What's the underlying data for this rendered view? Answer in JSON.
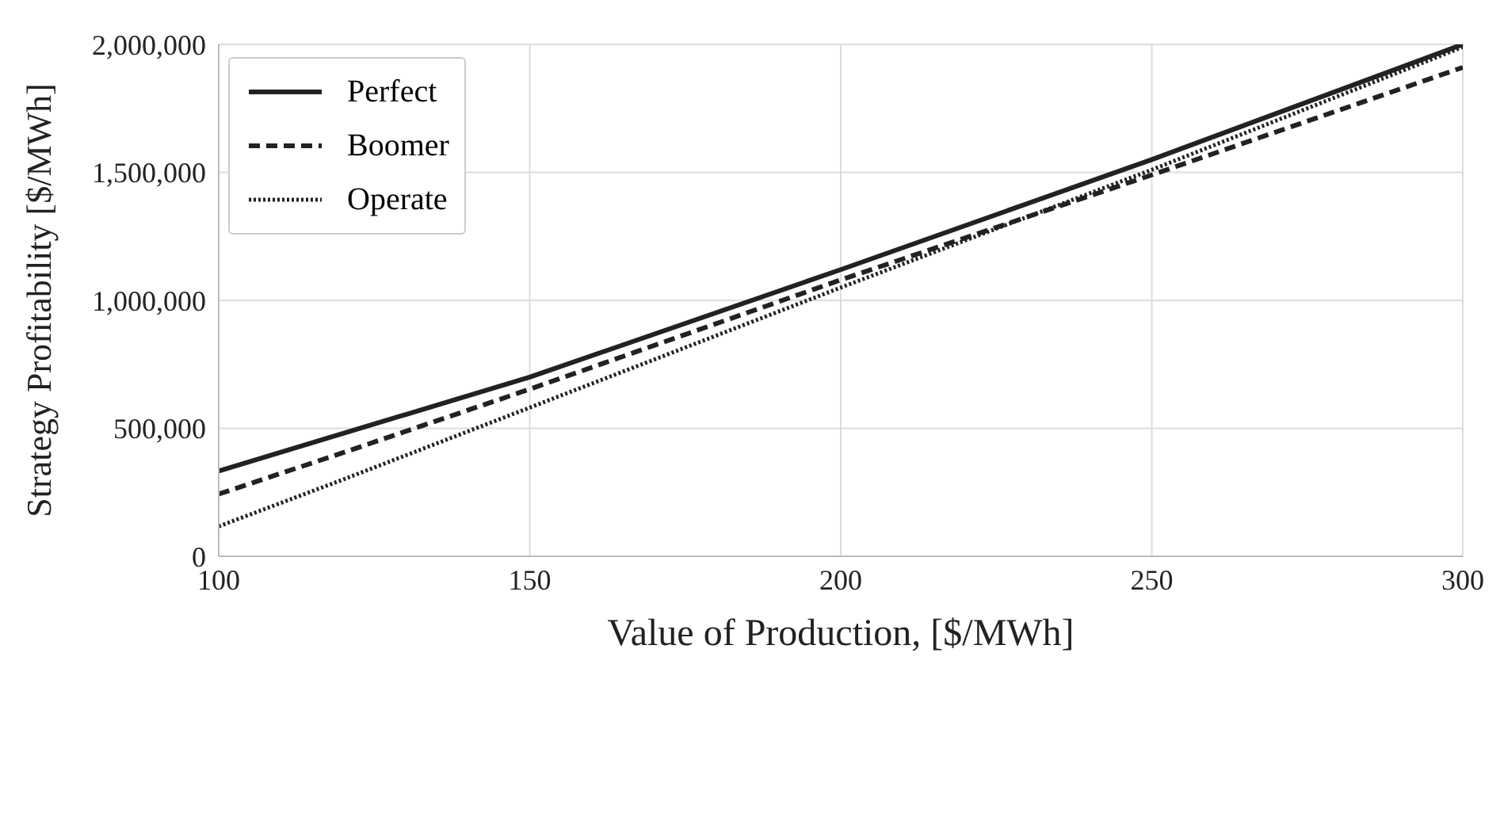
{
  "chart_data": {
    "type": "line",
    "xlabel": "Value of Production, [$/MWh]",
    "ylabel": "Strategy Profitability [$/MWh]",
    "x": [
      100,
      120,
      150,
      200,
      250,
      300
    ],
    "xlim": [
      100,
      300
    ],
    "xticks": [
      100,
      150,
      200,
      250,
      300
    ],
    "ylim": [
      0,
      2000000
    ],
    "yticks": [
      {
        "value": 0,
        "label": "0"
      },
      {
        "value": 500000,
        "label": "500,000"
      },
      {
        "value": 1000000,
        "label": "1,000,000"
      },
      {
        "value": 1500000,
        "label": "1,500,000"
      },
      {
        "value": 2000000,
        "label": "2,000,000"
      }
    ],
    "grid": true,
    "legend": "top left",
    "marker": "none",
    "series": [
      {
        "name": "Perfect",
        "color": "#222222",
        "line_style": "solid",
        "values": [
          333000,
          480000,
          700000,
          1120000,
          1550000,
          2000000
        ]
      },
      {
        "name": "Boomer",
        "color": "#222222",
        "line_style": "dashed",
        "values": [
          243000,
          405000,
          653000,
          1080000,
          1490000,
          1910000
        ]
      },
      {
        "name": "Operate",
        "color": "#222222",
        "line_style": "dotted",
        "values": [
          117000,
          300000,
          581000,
          1050000,
          1510000,
          1990000
        ]
      }
    ]
  }
}
